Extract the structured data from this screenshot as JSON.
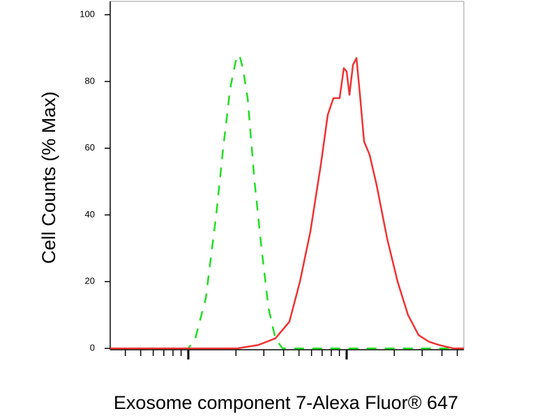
{
  "chart_data": {
    "type": "line",
    "x_label": "Exosome component 7-Alexa Fluor® 647",
    "y_label": "Cell Counts (% Max)",
    "log_x": true,
    "xlim": [
      3.21,
      550
    ],
    "xticks": [
      10,
      100
    ],
    "xminor_ticks": [
      4,
      5,
      6,
      7,
      8,
      9,
      20,
      30,
      40,
      50,
      60,
      70,
      80,
      90,
      200,
      300,
      400,
      500
    ],
    "ylim": [
      -0.4,
      104
    ],
    "yticks": [
      0,
      20,
      40,
      60,
      80,
      100
    ],
    "series": [
      {
        "color": "#22dd22",
        "dashed": true,
        "x": [
          3.21,
          10,
          11.07,
          12.89,
          15.0,
          16.6,
          18.4,
          19.9,
          21.0,
          22.1,
          23.7,
          26.2,
          29.0,
          32.1,
          35.5,
          39.3,
          550
        ],
        "values": [
          0,
          0,
          3,
          15,
          40,
          60,
          78,
          86,
          88,
          84,
          75,
          50,
          30,
          12,
          3,
          0,
          0
        ]
      },
      {
        "color": "#ee3333",
        "dashed": false,
        "x": [
          3.21,
          20.3,
          27.6,
          35.5,
          43.5,
          50.7,
          59.0,
          68.7,
          76.0,
          82.5,
          90.3,
          96.0,
          100,
          104.2,
          109.7,
          115.4,
          121.4,
          128.9,
          139.7,
          154.6,
          180.1,
          209.9,
          244.3,
          284.6,
          331.1,
          385.5,
          472.1,
          550
        ],
        "values": [
          0,
          0,
          1,
          3,
          8,
          20,
          35,
          55,
          70,
          75,
          75,
          84,
          83,
          76,
          85,
          87,
          76,
          62,
          58,
          49,
          33,
          20,
          10,
          4,
          2,
          1,
          0,
          0
        ]
      }
    ]
  }
}
